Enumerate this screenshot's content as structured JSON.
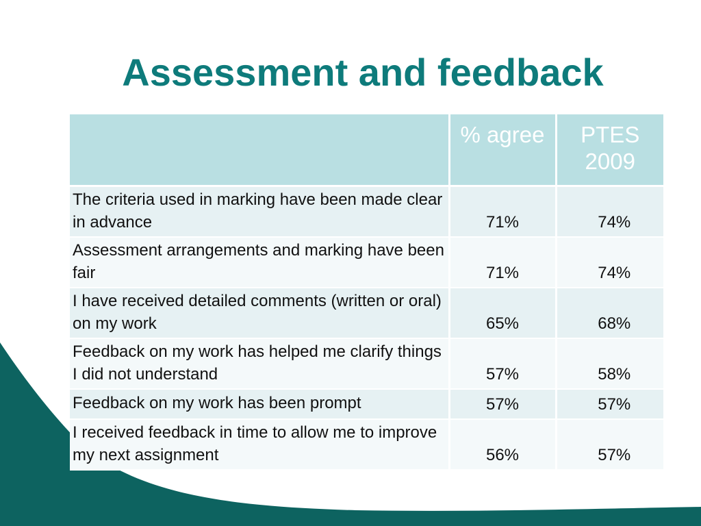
{
  "slide": {
    "title": "Assessment and feedback",
    "colors": {
      "title": "#0e7b7b",
      "header_bg": "#b9dfe2",
      "header_text": "#ffffff",
      "row_alt_1": "#e6f1f3",
      "row_alt_2": "#f4f9fa",
      "decor": "#0d6360"
    }
  },
  "table": {
    "headers": [
      "",
      "% agree",
      "PTES 2009"
    ],
    "rows": [
      {
        "statement": "The criteria used in marking have been made clear in advance",
        "agree": "71%",
        "ptes": "74%"
      },
      {
        "statement": "Assessment arrangements and marking have been fair",
        "agree": "71%",
        "ptes": "74%"
      },
      {
        "statement": "I have received detailed comments (written or oral) on my work",
        "agree": "65%",
        "ptes": "68%"
      },
      {
        "statement": "Feedback on my work has helped me clarify things I did not understand",
        "agree": "57%",
        "ptes": "58%"
      },
      {
        "statement": "Feedback on my work has been prompt",
        "agree": "57%",
        "ptes": "57%"
      },
      {
        "statement": "I received feedback in time to allow me to improve my next assignment",
        "agree": "56%",
        "ptes": "57%"
      }
    ]
  }
}
